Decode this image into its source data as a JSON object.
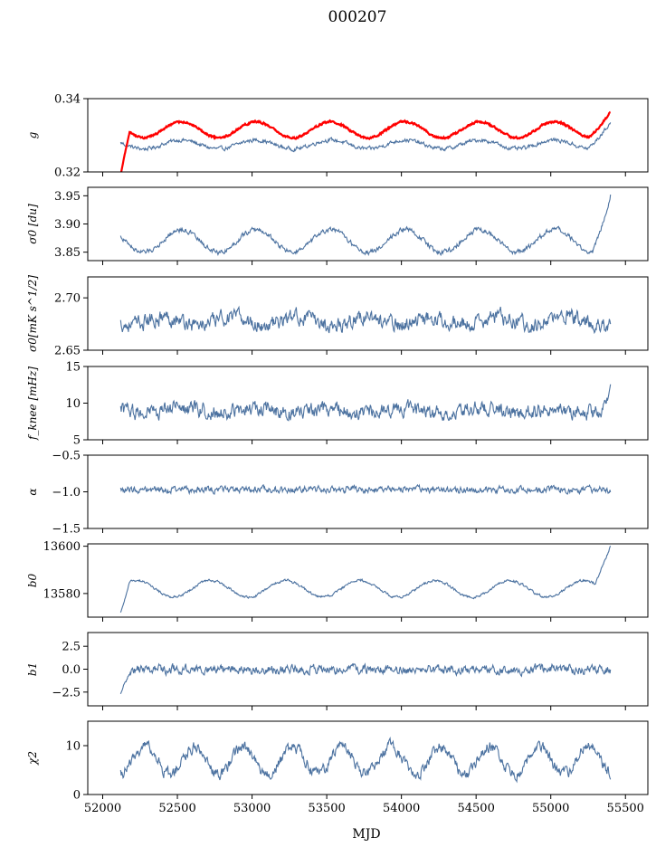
{
  "title": "000207",
  "chart_data": {
    "type": "line",
    "xlabel": "MJD",
    "xlim": [
      51900,
      55650
    ],
    "x_ticks": [
      "52000",
      "52500",
      "53000",
      "53500",
      "54000",
      "54500",
      "55000",
      "55500"
    ],
    "x_tick_values": [
      52000,
      52500,
      53000,
      53500,
      54000,
      54500,
      55000,
      55500
    ],
    "x_start": 52120,
    "x_end": 55400,
    "colors": {
      "series": "#4c72a0",
      "overlay": "#ff0000"
    },
    "panels": [
      {
        "ylabel": "g",
        "ylim": [
          0.32,
          0.34
        ],
        "ytick_labels": [
          "0.32",
          "0.34"
        ],
        "ytick_values": [
          0.32,
          0.34
        ],
        "series_line": {
          "base": 0.3275,
          "amp": 0.0012,
          "period": 500,
          "phase": 52400,
          "noise": 0.0006,
          "tail_start": 55250,
          "tail_delta": 0.006
        },
        "overlay_line": {
          "base": 0.3315,
          "amp": 0.0022,
          "period": 500,
          "phase": 52400,
          "noise": 0.0003,
          "start_value": 0.319,
          "tail_start": 55250,
          "tail_delta": 0.005
        }
      },
      {
        "ylabel": "σ0 [du]",
        "ylim": [
          3.835,
          3.965
        ],
        "ytick_labels": [
          "3.85",
          "3.90",
          "3.95"
        ],
        "ytick_values": [
          3.85,
          3.9,
          3.95
        ],
        "series_line": {
          "base": 3.87,
          "amp": 0.02,
          "period": 500,
          "phase": 52400,
          "noise": 0.005,
          "tail_start": 55280,
          "tail_delta": 0.08
        }
      },
      {
        "ylabel": "σ0[mK s^1/2]",
        "ylim": [
          2.65,
          2.72
        ],
        "ytick_labels": [
          "2.65",
          "2.70"
        ],
        "ytick_values": [
          2.65,
          2.7
        ],
        "series_line": {
          "base": 2.678,
          "amp": 0.004,
          "period": 450,
          "phase": 52300,
          "noise": 0.008
        }
      },
      {
        "ylabel": "f_knee [mHz]",
        "ylim": [
          5,
          15
        ],
        "ytick_labels": [
          "5",
          "10",
          "15"
        ],
        "ytick_values": [
          5,
          10,
          15
        ],
        "series_line": {
          "base": 9.0,
          "amp": 0.3,
          "period": 500,
          "phase": 52400,
          "noise": 1.1,
          "tail_start": 55330,
          "tail_delta": 3.2
        }
      },
      {
        "ylabel": "α",
        "ylim": [
          -1.5,
          -0.5
        ],
        "ytick_labels": [
          "−1.5",
          "−1.0",
          "−0.5"
        ],
        "ytick_values": [
          -1.5,
          -1.0,
          -0.5
        ],
        "series_line": {
          "base": -0.97,
          "amp": 0.0,
          "period": 500,
          "phase": 52400,
          "noise": 0.05
        }
      },
      {
        "ylabel": "b0",
        "ylim": [
          13570,
          13601
        ],
        "ytick_labels": [
          "13580",
          "13600"
        ],
        "ytick_values": [
          13580,
          13600
        ],
        "series_line": {
          "base": 13582,
          "amp": 3.5,
          "period": 500,
          "phase": 52600,
          "noise": 0.6,
          "start_value": 13572,
          "tail_start": 55300,
          "tail_delta": 20
        }
      },
      {
        "ylabel": "b1",
        "ylim": [
          -4,
          4
        ],
        "ytick_labels": [
          "−2.5",
          "0.0",
          "2.5"
        ],
        "ytick_values": [
          -2.5,
          0.0,
          2.5
        ],
        "series_line": {
          "base": 0.0,
          "amp": 0.0,
          "period": 500,
          "phase": 52400,
          "noise": 0.55,
          "start_value": -2.7
        }
      },
      {
        "ylabel": "χ2",
        "ylim": [
          0,
          15
        ],
        "ytick_labels": [
          "0",
          "10"
        ],
        "ytick_values": [
          0,
          10
        ],
        "series_line": {
          "base": 7.0,
          "amp": 2.8,
          "period": 330,
          "phase": 52200,
          "noise": 1.3
        }
      }
    ]
  }
}
